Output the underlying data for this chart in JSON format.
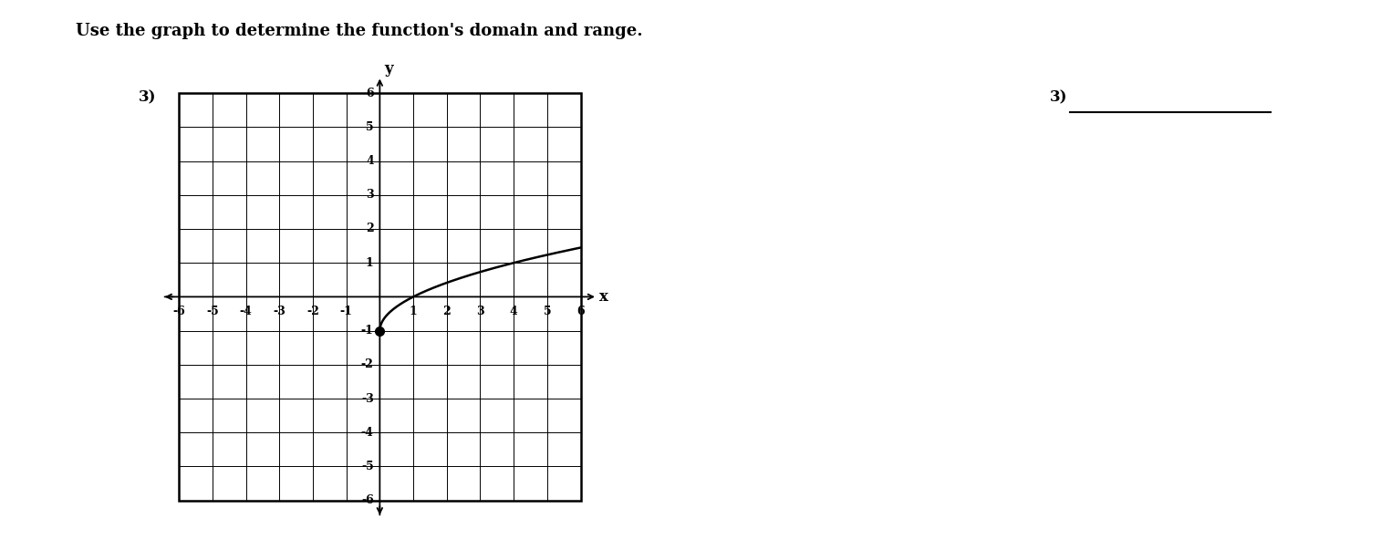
{
  "title": "Use the graph to determine the function's domain and range.",
  "problem_number": "3)",
  "answer_label": "3)",
  "xlim": [
    -6,
    6
  ],
  "ylim": [
    -6,
    6
  ],
  "curve_start_x": 0,
  "curve_start_y": -1,
  "background_color": "#ffffff",
  "text_color": "#000000",
  "grid_color": "#000000",
  "curve_color": "#000000",
  "dot_color": "#000000",
  "title_fontsize": 13,
  "label_fontsize": 12,
  "tick_fontsize": 9
}
